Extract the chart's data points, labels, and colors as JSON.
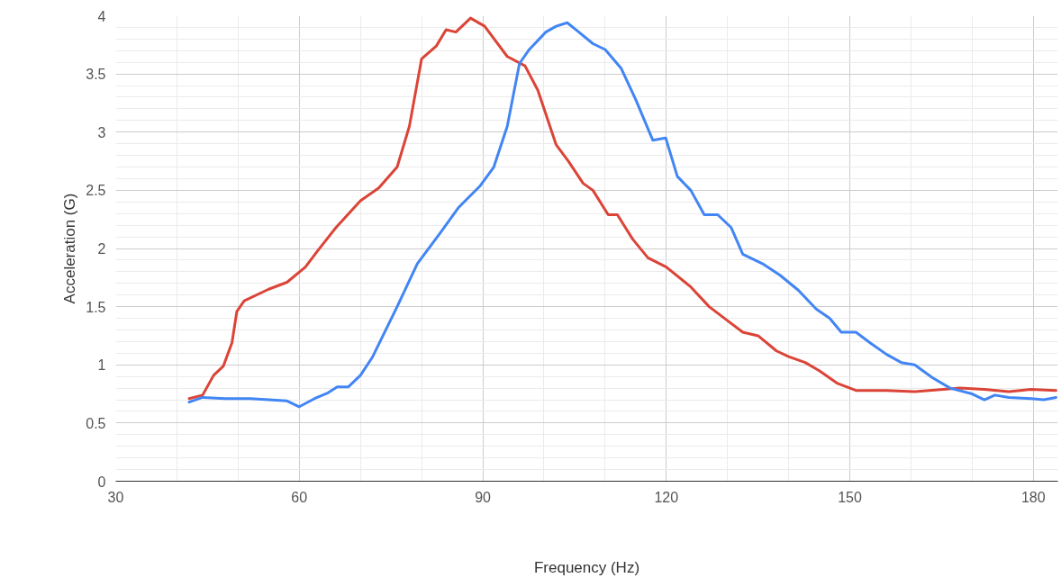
{
  "chart_data": {
    "type": "line",
    "xlabel": "Frequency (Hz)",
    "ylabel": "Acceleration (G)",
    "xlim": [
      30,
      184
    ],
    "ylim": [
      0,
      4
    ],
    "xticks": [
      30,
      60,
      90,
      120,
      150,
      180
    ],
    "yticks": [
      0,
      0.5,
      1,
      1.5,
      2,
      2.5,
      3,
      3.5,
      4
    ],
    "grid": true,
    "marker": "none",
    "line_style": "solid",
    "series": [
      {
        "color": "#db4437",
        "x": [
          42,
          44.2,
          46,
          47.6,
          49,
          49.8,
          51,
          55,
          58,
          61,
          63,
          66,
          70,
          73,
          76,
          78,
          80,
          82.4,
          84,
          85.6,
          88,
          90.3,
          94,
          96.9,
          99,
          102,
          104,
          106.4,
          108,
          110.5,
          112,
          114.5,
          117,
          120,
          124,
          127,
          130,
          132.5,
          135,
          138,
          140,
          142.7,
          145,
          148,
          151,
          156,
          160.6,
          168,
          172,
          176,
          179.6,
          183.7
        ],
        "values": [
          0.71,
          0.74,
          0.91,
          0.99,
          1.19,
          1.46,
          1.55,
          1.65,
          1.71,
          1.84,
          1.98,
          2.18,
          2.41,
          2.52,
          2.7,
          3.05,
          3.63,
          3.74,
          3.88,
          3.86,
          3.98,
          3.91,
          3.65,
          3.57,
          3.36,
          2.89,
          2.75,
          2.56,
          2.5,
          2.29,
          2.29,
          2.08,
          1.92,
          1.84,
          1.67,
          1.5,
          1.38,
          1.28,
          1.25,
          1.12,
          1.07,
          1.02,
          0.95,
          0.84,
          0.78,
          0.78,
          0.77,
          0.8,
          0.79,
          0.77,
          0.79,
          0.78
        ]
      },
      {
        "color": "#4285f4",
        "x": [
          42,
          44.2,
          47.9,
          52,
          58,
          60,
          62.5,
          64.7,
          66.2,
          68,
          70,
          72,
          76,
          79.3,
          83,
          86,
          89.6,
          91.8,
          94,
          96,
          97.6,
          100.3,
          102,
          103.8,
          105.7,
          108,
          110,
          112.6,
          115,
          117.8,
          119.9,
          121.8,
          124,
          126.2,
          128.4,
          130.6,
          132.5,
          135.7,
          138.6,
          141.6,
          144.5,
          146.7,
          148.6,
          151,
          153.3,
          156,
          158.4,
          160.6,
          163.5,
          166.4,
          170,
          172,
          173.7,
          176,
          179.6,
          181.7,
          183.7
        ],
        "values": [
          0.68,
          0.72,
          0.71,
          0.71,
          0.69,
          0.64,
          0.71,
          0.76,
          0.81,
          0.81,
          0.91,
          1.07,
          1.5,
          1.87,
          2.13,
          2.35,
          2.54,
          2.7,
          3.05,
          3.59,
          3.71,
          3.86,
          3.91,
          3.94,
          3.86,
          3.76,
          3.71,
          3.55,
          3.28,
          2.93,
          2.95,
          2.62,
          2.5,
          2.29,
          2.29,
          2.18,
          1.95,
          1.87,
          1.77,
          1.64,
          1.48,
          1.4,
          1.28,
          1.28,
          1.19,
          1.09,
          1.02,
          1.0,
          0.89,
          0.8,
          0.75,
          0.7,
          0.74,
          0.72,
          0.71,
          0.7,
          0.72
        ]
      }
    ]
  }
}
